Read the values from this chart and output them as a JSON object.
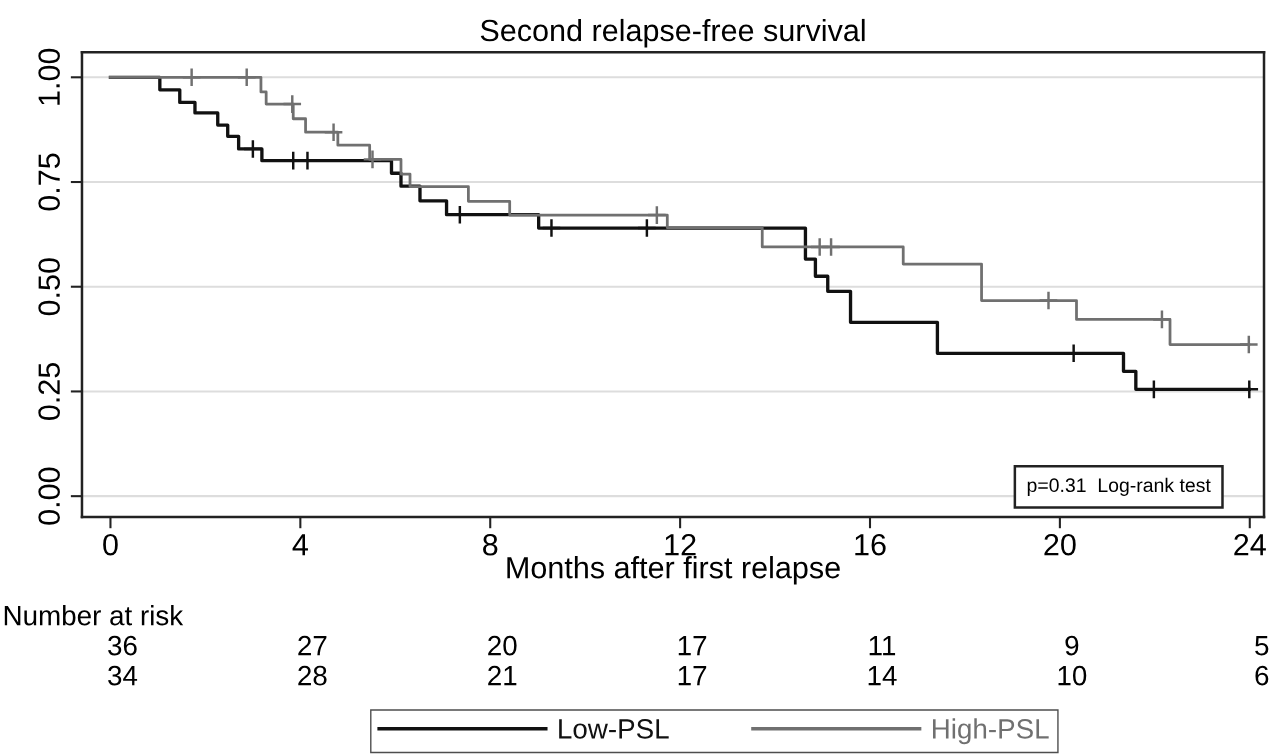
{
  "chart_data": {
    "type": "step",
    "title": "Second relapse-free survival",
    "xlabel": "Months after first relapse",
    "xlim": [
      -0.6,
      24.3
    ],
    "ylim": [
      -0.05,
      1.06
    ],
    "xticks": [
      0,
      4,
      8,
      12,
      16,
      20,
      24
    ],
    "yticks": [
      {
        "value": 0,
        "label": "0.00"
      },
      {
        "value": 0.25,
        "label": "0.25"
      },
      {
        "value": 0.5,
        "label": "0.50"
      },
      {
        "value": 0.75,
        "label": "0.75"
      },
      {
        "value": 1,
        "label": "1.00"
      }
    ],
    "grid": "y",
    "legend": "bottom",
    "series": [
      {
        "name": "Low-PSL",
        "color": "#111111",
        "x": [
          0,
          1.04,
          1.46,
          1.78,
          2.26,
          2.47,
          2.7,
          3.19,
          5.92,
          6.12,
          6.52,
          7.08,
          9.02,
          14.64,
          14.85,
          15.11,
          15.59,
          17.42,
          21.34,
          21.6,
          23.99
        ],
        "values": [
          1.0,
          0.97,
          0.94,
          0.915,
          0.886,
          0.859,
          0.829,
          0.801,
          0.771,
          0.74,
          0.705,
          0.672,
          0.64,
          0.566,
          0.525,
          0.489,
          0.415,
          0.341,
          0.298,
          0.255,
          0.255
        ]
      },
      {
        "name": "High-PSL",
        "color": "#707070",
        "x": [
          0,
          3.17,
          3.28,
          3.85,
          4.11,
          4.79,
          5.46,
          6.12,
          6.31,
          7.54,
          8.41,
          11.73,
          13.73,
          16.7,
          18.35,
          20.35,
          22.32,
          23.98
        ],
        "values": [
          1.0,
          0.965,
          0.936,
          0.901,
          0.869,
          0.838,
          0.804,
          0.769,
          0.739,
          0.704,
          0.671,
          0.641,
          0.595,
          0.554,
          0.467,
          0.422,
          0.362,
          0.362
        ]
      },
      {
        "type": "scatter",
        "marker": "cross",
        "color": "#111111",
        "x": [
          3.0,
          3.85,
          4.15,
          7.36,
          9.29,
          11.3,
          20.29,
          21.98,
          23.99
        ],
        "values": [
          0.829,
          0.801,
          0.801,
          0.672,
          0.64,
          0.64,
          0.341,
          0.255,
          0.255
        ]
      },
      {
        "type": "scatter",
        "marker": "cross",
        "color": "#707070",
        "x": [
          1.71,
          2.87,
          3.83,
          4.7,
          5.52,
          11.51,
          14.94,
          15.18,
          19.76,
          22.15,
          23.98
        ],
        "values": [
          1.0,
          1.0,
          0.936,
          0.869,
          0.804,
          0.671,
          0.595,
          0.595,
          0.467,
          0.422,
          0.362
        ]
      }
    ],
    "annotations": [
      "p=0.31  Log-rank test",
      "Number at risk",
      "36",
      "27",
      "20",
      "17",
      "11",
      "9",
      "5",
      "34",
      "28",
      "21",
      "17",
      "14",
      "10",
      "6"
    ]
  }
}
